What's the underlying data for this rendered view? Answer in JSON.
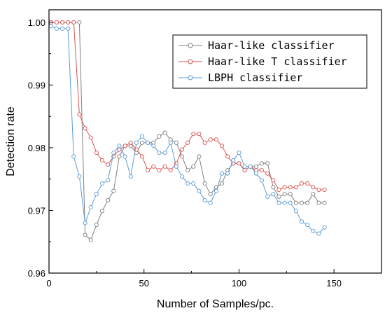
{
  "chart_data": {
    "type": "line",
    "title": "",
    "xlabel": "Number of Samples/pc.",
    "ylabel": "Detection rate",
    "xlim": [
      0,
      175
    ],
    "ylim": [
      0.96,
      1.002
    ],
    "x_ticks": [
      0,
      50,
      100,
      150
    ],
    "y_ticks": [
      0.96,
      0.97,
      0.98,
      0.99,
      1.0
    ],
    "x_tick_labels": [
      "0",
      "50",
      "100",
      "150"
    ],
    "y_tick_labels": [
      "0.96",
      "0.97",
      "0.98",
      "0.99",
      "1.00"
    ],
    "grid": false,
    "legend_position": "top-right",
    "series": [
      {
        "name": "Haar-like classifier",
        "color": "#7f7f7f",
        "marker": "circle",
        "x": [
          1,
          4,
          7,
          10,
          13,
          16,
          19,
          22,
          25,
          28,
          31,
          34,
          37,
          40,
          43,
          46,
          49,
          52,
          55,
          58,
          61,
          64,
          67,
          70,
          73,
          76,
          79,
          82,
          85,
          88,
          91,
          94,
          97,
          100,
          103,
          106,
          109,
          112,
          115,
          118,
          121,
          124,
          127,
          130,
          133,
          136,
          139,
          142,
          145
        ],
        "y": [
          1.0,
          1.0,
          1.0,
          1.0,
          1.0,
          1.0,
          0.9661,
          0.9653,
          0.9677,
          0.9699,
          0.9716,
          0.9731,
          0.9786,
          0.9803,
          0.9803,
          0.9792,
          0.9808,
          0.9808,
          0.9808,
          0.9818,
          0.9824,
          0.9813,
          0.9808,
          0.9786,
          0.9764,
          0.977,
          0.9786,
          0.9743,
          0.9726,
          0.9737,
          0.9743,
          0.9764,
          0.9775,
          0.9775,
          0.9764,
          0.977,
          0.977,
          0.9775,
          0.9775,
          0.9737,
          0.9722,
          0.9726,
          0.9726,
          0.9712,
          0.9712,
          0.9712,
          0.9726,
          0.9712,
          0.9712
        ]
      },
      {
        "name": "Haar-like T classifier",
        "color": "#d9534f",
        "marker": "circle",
        "x": [
          1,
          4,
          7,
          10,
          13,
          16,
          19,
          22,
          25,
          28,
          31,
          34,
          37,
          40,
          43,
          46,
          49,
          52,
          55,
          58,
          61,
          64,
          67,
          70,
          73,
          76,
          79,
          82,
          85,
          88,
          91,
          94,
          97,
          100,
          103,
          106,
          109,
          112,
          115,
          118,
          121,
          124,
          127,
          130,
          133,
          136,
          139,
          142,
          145
        ],
        "y": [
          1.0,
          1.0,
          1.0,
          1.0,
          1.0,
          0.9853,
          0.9831,
          0.9816,
          0.9792,
          0.978,
          0.9773,
          0.9786,
          0.9797,
          0.9803,
          0.9808,
          0.9797,
          0.9786,
          0.9764,
          0.977,
          0.9764,
          0.977,
          0.9764,
          0.9775,
          0.9797,
          0.9808,
          0.9822,
          0.9822,
          0.9808,
          0.9813,
          0.9813,
          0.9803,
          0.9786,
          0.9775,
          0.9775,
          0.9764,
          0.977,
          0.9764,
          0.9764,
          0.9759,
          0.9748,
          0.9733,
          0.9737,
          0.9737,
          0.9737,
          0.9743,
          0.9743,
          0.9737,
          0.9733,
          0.9733
        ]
      },
      {
        "name": "LBPH classifier",
        "color": "#5b9bd5",
        "marker": "circle",
        "x": [
          1,
          4,
          7,
          10,
          13,
          16,
          19,
          22,
          25,
          28,
          31,
          34,
          37,
          40,
          43,
          46,
          49,
          52,
          55,
          58,
          61,
          64,
          67,
          70,
          73,
          76,
          79,
          82,
          85,
          88,
          91,
          94,
          97,
          100,
          103,
          106,
          109,
          112,
          115,
          118,
          121,
          124,
          127,
          130,
          133,
          136,
          139,
          142,
          145
        ],
        "y": [
          0.9994,
          0.999,
          0.999,
          0.999,
          0.9786,
          0.9754,
          0.968,
          0.9705,
          0.9726,
          0.9743,
          0.9748,
          0.9792,
          0.9803,
          0.9786,
          0.9754,
          0.9808,
          0.9818,
          0.9808,
          0.9803,
          0.9792,
          0.9792,
          0.9808,
          0.977,
          0.9754,
          0.9743,
          0.9743,
          0.9731,
          0.9716,
          0.9712,
          0.9731,
          0.9759,
          0.9759,
          0.978,
          0.9792,
          0.977,
          0.977,
          0.9759,
          0.9748,
          0.9722,
          0.9726,
          0.9712,
          0.9712,
          0.9712,
          0.9699,
          0.9682,
          0.9677,
          0.9667,
          0.9663,
          0.9673
        ]
      }
    ]
  }
}
